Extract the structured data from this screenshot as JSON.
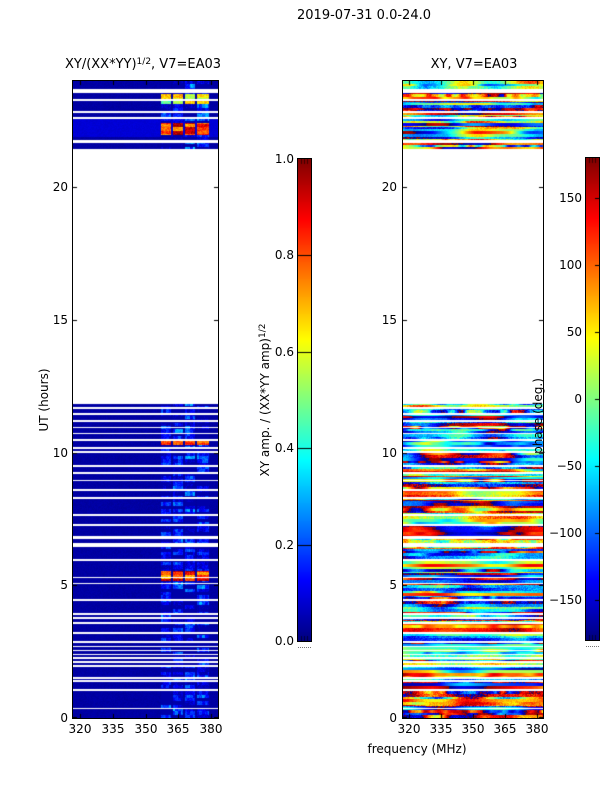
{
  "figure": {
    "title": "2019-07-31 0.0-24.0"
  },
  "chart_data": [
    {
      "type": "heatmap",
      "id": "amplitude-dynamic-spectrum",
      "title": {
        "main": "XY/(XX*YY)",
        "sup": "1/2",
        "rest": ", V7=EA03"
      },
      "x": {
        "label": "frequency (MHz)",
        "range": [
          317,
          383
        ],
        "ticks": [
          "320",
          "335",
          "350",
          "365",
          "380"
        ]
      },
      "y": {
        "label": "UT (hours)",
        "range": [
          0,
          24
        ],
        "ticks": [
          "0",
          "5",
          "10",
          "15",
          "20"
        ]
      },
      "colormap": "jet",
      "grid": false,
      "colorbar": {
        "label": {
          "main": "XY amp. / (XX*YY amp)",
          "sup": "1/2"
        },
        "range": [
          0,
          1
        ],
        "ticks": [
          "0.0",
          "0.2",
          "0.4",
          "0.6",
          "0.8",
          "1.0"
        ]
      },
      "background_value": 0.04,
      "active_band": {
        "f0": 357.0,
        "f1": 378.8,
        "column_groups": [
          [
            357.0,
            361.8
          ],
          [
            362.5,
            367.2
          ],
          [
            367.9,
            372.6
          ],
          [
            373.3,
            378.8
          ]
        ],
        "typical_value_range": [
          0.18,
          0.62
        ]
      },
      "hot_intervals": [
        {
          "t0": 21.95,
          "t1": 22.4,
          "value": 0.92
        },
        {
          "t0": 23.15,
          "t1": 23.5,
          "value": 0.62
        },
        {
          "t0": 5.15,
          "t1": 5.55,
          "value": 0.88
        },
        {
          "t0": 10.28,
          "t1": 10.42,
          "value": 0.8
        }
      ]
    },
    {
      "type": "heatmap",
      "id": "phase-dynamic-spectrum",
      "title": {
        "main": "XY, V7=EA03"
      },
      "x": {
        "label": "frequency (MHz)",
        "range": [
          317,
          383
        ],
        "ticks": [
          "320",
          "335",
          "350",
          "365",
          "380"
        ]
      },
      "y": {
        "label": "UT (hours)",
        "range": [
          0,
          24
        ],
        "ticks": [
          "0",
          "5",
          "10",
          "15",
          "20"
        ]
      },
      "colormap": "jet",
      "grid": false,
      "colorbar": {
        "label": {
          "main": "phase (deg.)"
        },
        "range": [
          -180,
          180
        ],
        "ticks": [
          "150",
          "100",
          "50",
          "0",
          "−50",
          "−100",
          "−150"
        ]
      },
      "content": "full-band random phase noise between -180 and 180 deg in observed time blocks"
    }
  ],
  "shared": {
    "time_blocks": [
      {
        "t0": 0.0,
        "t1": 11.82
      },
      {
        "t0": 21.42,
        "t1": 24.0
      }
    ],
    "gaps": [
      {
        "t": 23.62,
        "dt": 0.12
      },
      {
        "t": 23.3,
        "dt": 0.08
      },
      {
        "t": 22.82,
        "dt": 0.08
      },
      {
        "t": 22.6,
        "dt": 0.08
      },
      {
        "t": 21.72,
        "dt": 0.1
      },
      {
        "t": 11.68,
        "dt": 0.08
      },
      {
        "t": 11.45,
        "dt": 0.06
      },
      {
        "t": 11.18,
        "dt": 0.06
      },
      {
        "t": 10.95,
        "dt": 0.06
      },
      {
        "t": 10.72,
        "dt": 0.06
      },
      {
        "t": 10.48,
        "dt": 0.06
      },
      {
        "t": 10.18,
        "dt": 0.06
      },
      {
        "t": 10.02,
        "dt": 0.06
      },
      {
        "t": 9.5,
        "dt": 0.08
      },
      {
        "t": 9.22,
        "dt": 0.06
      },
      {
        "t": 8.95,
        "dt": 0.06
      },
      {
        "t": 8.6,
        "dt": 0.08
      },
      {
        "t": 8.3,
        "dt": 0.06
      },
      {
        "t": 7.65,
        "dt": 0.08
      },
      {
        "t": 7.28,
        "dt": 0.06
      },
      {
        "t": 6.8,
        "dt": 0.08
      },
      {
        "t": 6.52,
        "dt": 0.12
      },
      {
        "t": 5.95,
        "dt": 0.1
      },
      {
        "t": 5.3,
        "dt": 0.06
      },
      {
        "t": 5.06,
        "dt": 0.06
      },
      {
        "t": 4.45,
        "dt": 0.1
      },
      {
        "t": 3.92,
        "dt": 0.06
      },
      {
        "t": 3.76,
        "dt": 0.06
      },
      {
        "t": 3.58,
        "dt": 0.06
      },
      {
        "t": 3.2,
        "dt": 0.08
      },
      {
        "t": 2.86,
        "dt": 0.06
      },
      {
        "t": 2.7,
        "dt": 0.06
      },
      {
        "t": 2.55,
        "dt": 0.06
      },
      {
        "t": 2.4,
        "dt": 0.06
      },
      {
        "t": 2.26,
        "dt": 0.06
      },
      {
        "t": 2.12,
        "dt": 0.06
      },
      {
        "t": 1.96,
        "dt": 0.06
      },
      {
        "t": 1.52,
        "dt": 0.08
      },
      {
        "t": 1.4,
        "dt": 0.06
      },
      {
        "t": 1.06,
        "dt": 0.08
      },
      {
        "t": 0.36,
        "dt": 0.06
      }
    ]
  },
  "colors": {
    "background": "#ffffff",
    "frame": "#000000",
    "text": "#000000",
    "low_value_navy": "#000083"
  }
}
